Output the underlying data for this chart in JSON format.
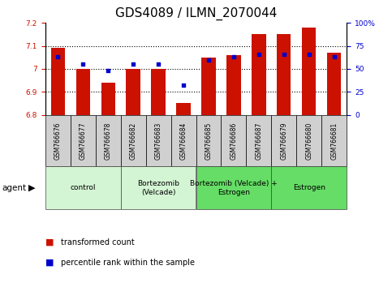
{
  "title": "GDS4089 / ILMN_2070044",
  "samples": [
    "GSM766676",
    "GSM766677",
    "GSM766678",
    "GSM766682",
    "GSM766683",
    "GSM766684",
    "GSM766685",
    "GSM766686",
    "GSM766687",
    "GSM766679",
    "GSM766680",
    "GSM766681"
  ],
  "red_values": [
    7.09,
    7.0,
    6.94,
    7.0,
    7.0,
    6.85,
    7.05,
    7.06,
    7.15,
    7.15,
    7.18,
    7.07
  ],
  "blue_values": [
    63,
    55,
    48,
    55,
    55,
    32,
    60,
    63,
    66,
    66,
    66,
    63
  ],
  "ylim_left": [
    6.8,
    7.2
  ],
  "ylim_right": [
    0,
    100
  ],
  "yticks_left": [
    6.8,
    6.9,
    7.0,
    7.1,
    7.2
  ],
  "yticks_right": [
    0,
    25,
    50,
    75,
    100
  ],
  "ytick_labels_right": [
    "0",
    "25",
    "50",
    "75",
    "100%"
  ],
  "ytick_labels_left": [
    "6.8",
    "6.9",
    "7",
    "7.1",
    "7.2"
  ],
  "groups": [
    {
      "label": "control",
      "start": 0,
      "end": 3,
      "color": "#d4f5d4"
    },
    {
      "label": "Bortezomib\n(Velcade)",
      "start": 3,
      "end": 6,
      "color": "#d4f5d4"
    },
    {
      "label": "Bortezomib (Velcade) +\nEstrogen",
      "start": 6,
      "end": 9,
      "color": "#66dd66"
    },
    {
      "label": "Estrogen",
      "start": 9,
      "end": 12,
      "color": "#66dd66"
    }
  ],
  "bar_color": "#cc1100",
  "dot_color": "#0000cc",
  "bar_width": 0.55,
  "background_color": "#ffffff",
  "agent_label": "agent",
  "legend_red": "transformed count",
  "legend_blue": "percentile rank within the sample",
  "title_fontsize": 11,
  "tick_fontsize": 6.5,
  "axis_label_color_left": "#cc1100",
  "axis_label_color_right": "#0000cc",
  "sample_box_color": "#d0d0d0"
}
